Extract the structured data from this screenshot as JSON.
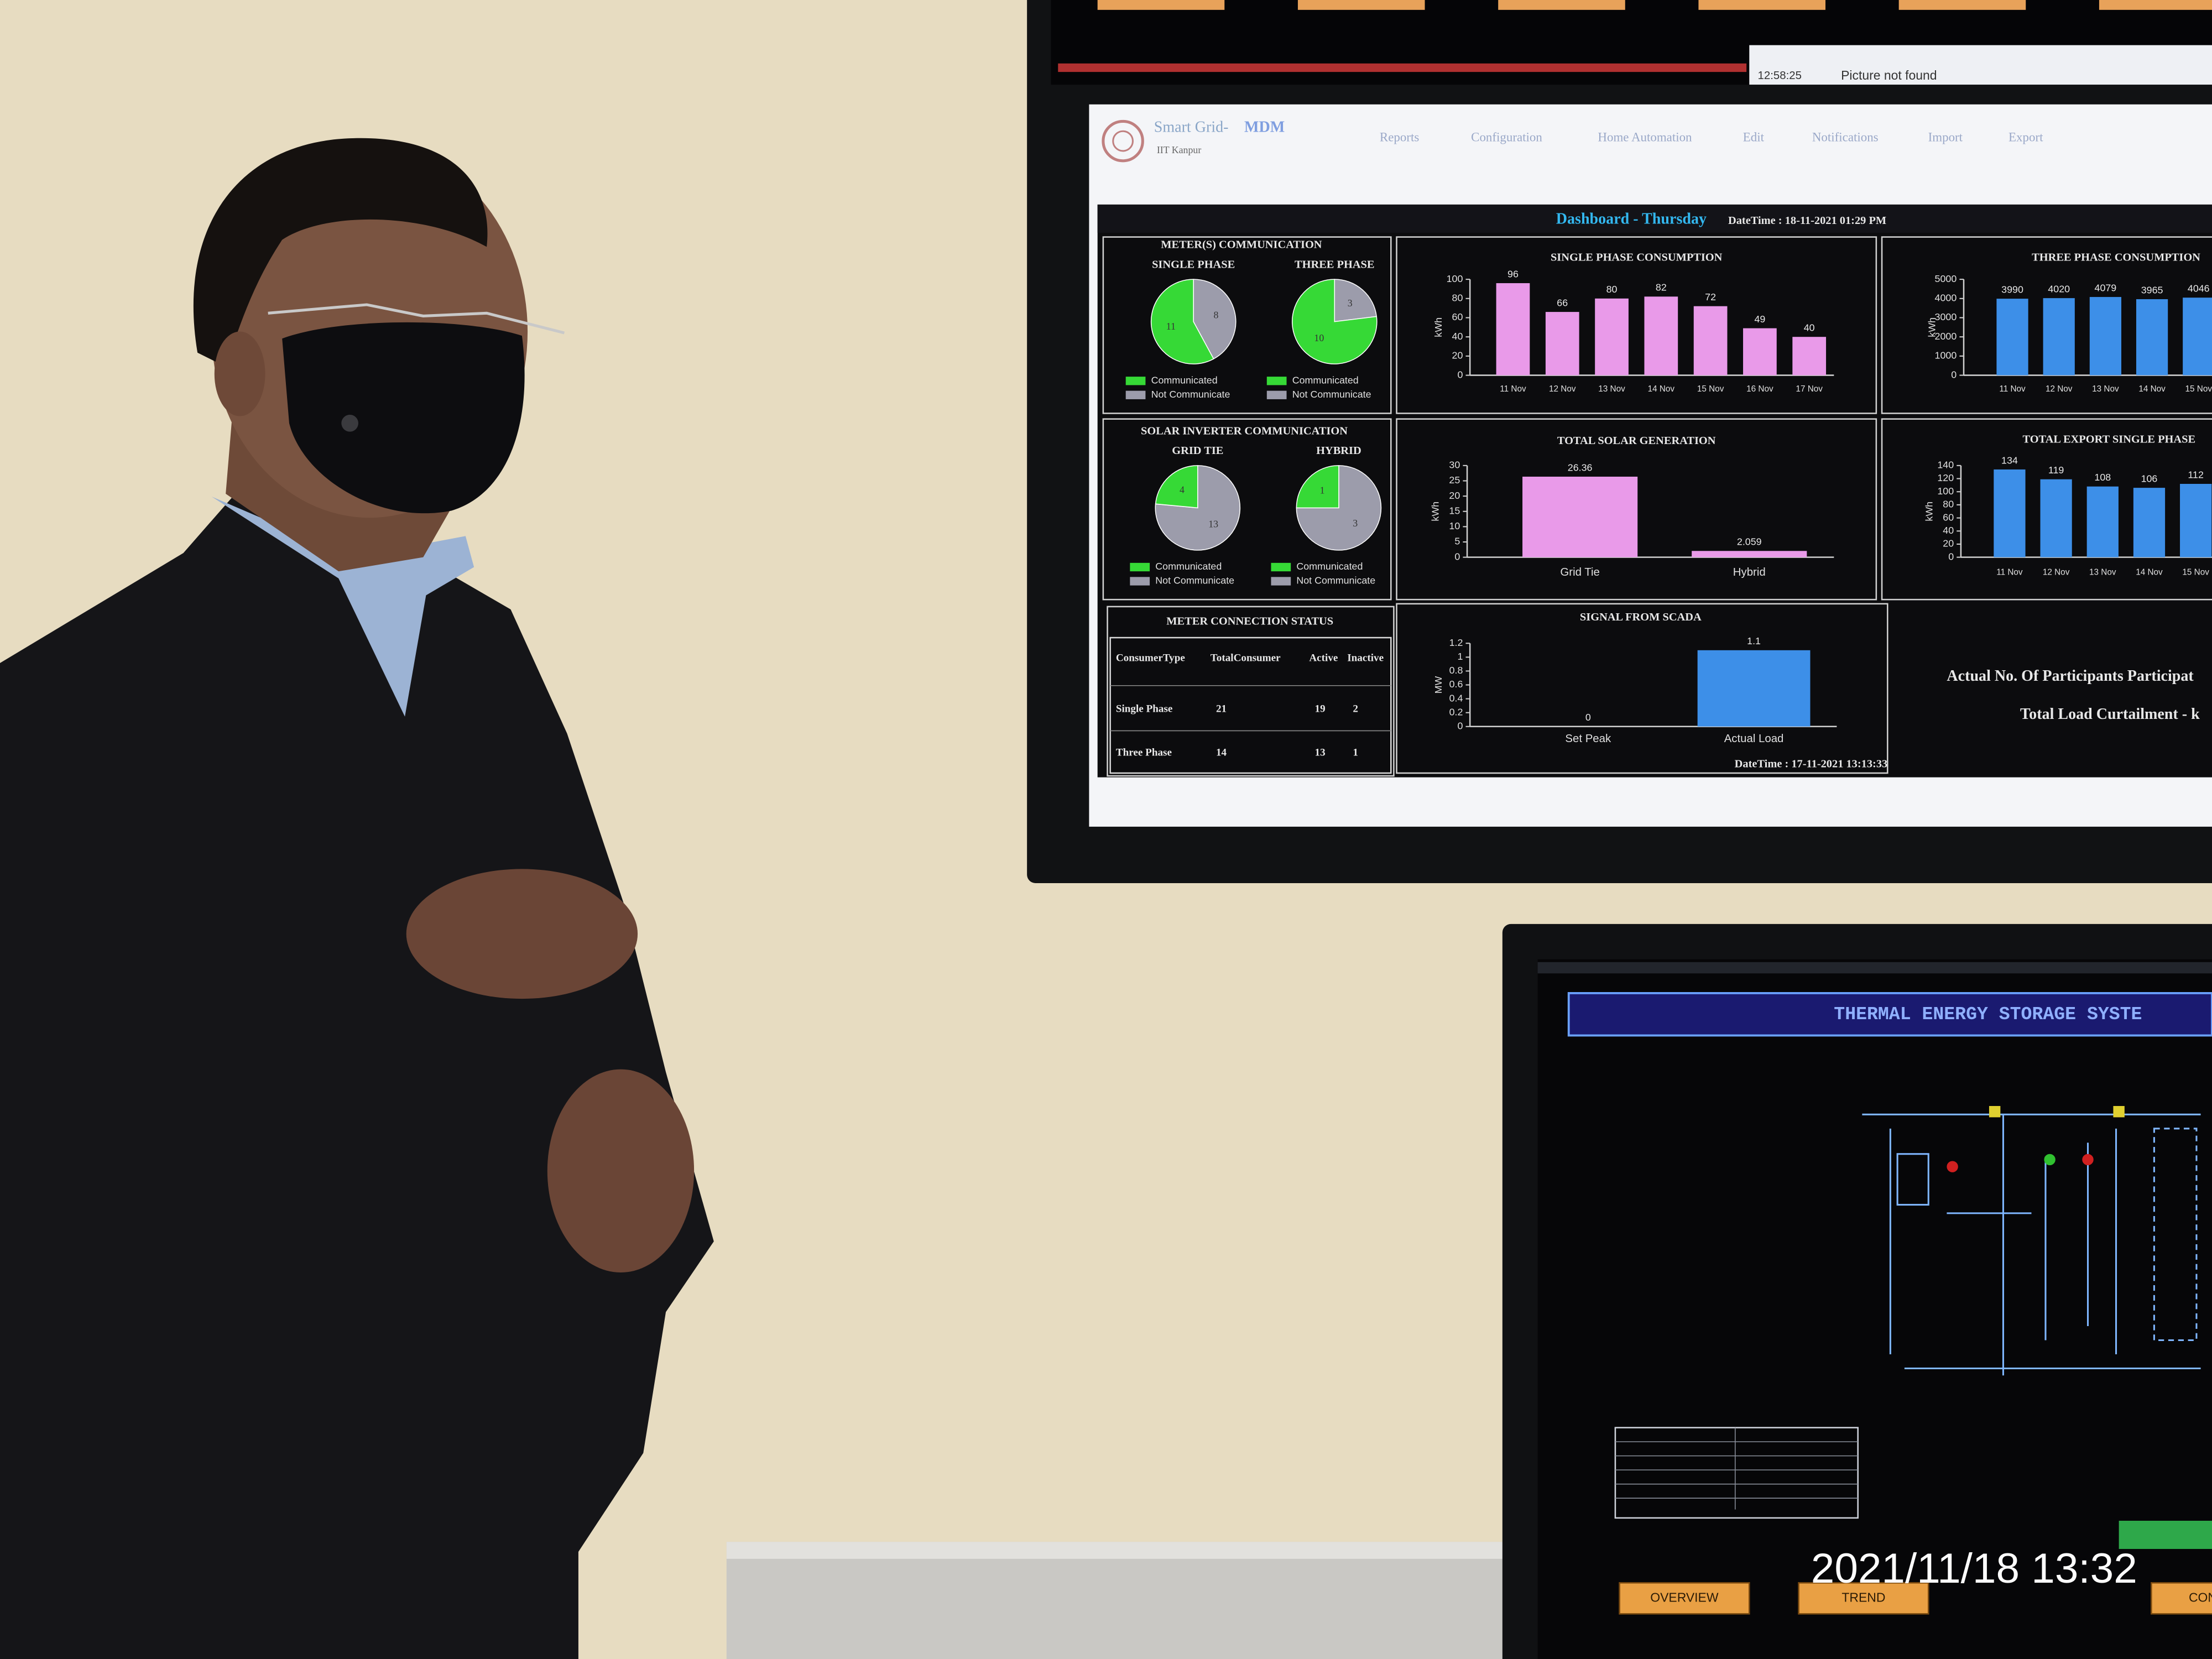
{
  "photo_timestamp": "2021/11/18 13:32",
  "top_strip": {
    "message_time": "12:58:25",
    "message": "Picture not found"
  },
  "dashboard": {
    "app_title": "Smart Grid-",
    "app_title_accent": "MDM",
    "institute": "IIT Kanpur",
    "nav": [
      "Reports",
      "Configuration",
      "Home Automation",
      "Edit",
      "Notifications",
      "Import",
      "Export"
    ],
    "heading": "Dashboard - Thursday",
    "datetime": "DateTime : 18-11-2021 01:29 PM",
    "meter_communication": {
      "title": "METER(S) COMMUNICATION",
      "pies": [
        {
          "label": "SINGLE PHASE",
          "values": [
            11,
            8
          ]
        },
        {
          "label": "THREE PHASE",
          "values": [
            10,
            3
          ]
        }
      ],
      "legend": [
        "Communicated",
        "Not Communicate"
      ],
      "colors": [
        "#36d936",
        "#9c9cab"
      ]
    },
    "solar_communication": {
      "title": "SOLAR INVERTER COMMUNICATION",
      "pies": [
        {
          "label": "GRID TIE",
          "values": [
            4,
            13
          ]
        },
        {
          "label": "HYBRID",
          "values": [
            1,
            3
          ]
        }
      ],
      "legend": [
        "Communicated",
        "Not Communicate"
      ],
      "colors": [
        "#36d936",
        "#9c9cab"
      ]
    },
    "charts": [
      {
        "type": "bar",
        "title": "SINGLE PHASE CONSUMPTION",
        "unit": "kWh",
        "categories": [
          "11 Nov",
          "12 Nov",
          "13 Nov",
          "14 Nov",
          "15 Nov",
          "16 Nov",
          "17 Nov"
        ],
        "values": [
          96,
          66,
          80,
          82,
          72,
          49,
          40
        ],
        "color": "#e99ae9",
        "ylim": [
          0,
          100
        ],
        "yticks": [
          0,
          20,
          40,
          60,
          80,
          100
        ]
      },
      {
        "type": "bar",
        "title": "THREE PHASE CONSUMPTION",
        "unit": "kWh",
        "categories": [
          "11 Nov",
          "12 Nov",
          "13 Nov",
          "14 Nov",
          "15 Nov"
        ],
        "values": [
          3990,
          4020,
          4079,
          3965,
          4046
        ],
        "color": "#3d8fe8",
        "ylim": [
          0,
          5000
        ],
        "yticks": [
          0,
          1000,
          2000,
          3000,
          4000,
          5000
        ]
      },
      {
        "type": "bar",
        "title": "TOTAL SOLAR GENERATION",
        "unit": "kWh",
        "categories": [
          "Grid Tie",
          "Hybrid"
        ],
        "values": [
          26.36,
          2.059
        ],
        "color": "#e99ae9",
        "ylim": [
          0,
          30
        ],
        "yticks": [
          0,
          5,
          10,
          15,
          20,
          25,
          30
        ]
      },
      {
        "type": "bar",
        "title": "TOTAL EXPORT SINGLE PHASE",
        "unit": "kWh",
        "categories": [
          "11 Nov",
          "12 Nov",
          "13 Nov",
          "14 Nov",
          "15 Nov"
        ],
        "values": [
          134,
          119,
          108,
          106,
          112
        ],
        "color": "#3d8fe8",
        "ylim": [
          0,
          140
        ],
        "yticks": [
          0,
          20,
          40,
          60,
          80,
          100,
          120,
          140
        ]
      },
      {
        "type": "bar",
        "title": "SIGNAL FROM SCADA",
        "unit": "MW",
        "categories": [
          "Set Peak",
          "Actual Load"
        ],
        "values": [
          0,
          1.1
        ],
        "color": "#3d8fe8",
        "ylim": [
          0,
          1.2
        ],
        "yticks": [
          0,
          0.2,
          0.4,
          0.6,
          0.8,
          1,
          1.2
        ],
        "datetime": "DateTime : 17-11-2021 13:13:33"
      }
    ],
    "meter_status": {
      "title": "METER CONNECTION STATUS",
      "header": [
        "ConsumerType",
        "TotalConsumer",
        "Active",
        "Inactive"
      ],
      "rows": [
        [
          "Single Phase",
          21,
          19,
          2
        ],
        [
          "Three Phase",
          14,
          13,
          1
        ]
      ]
    },
    "participants": "Actual No. Of Participants Participat",
    "curtailment": "Total Load Curtailment - k"
  },
  "tes": {
    "title": "THERMAL ENERGY STORAGE SYSTE",
    "buttons": [
      "OVERVIEW",
      "TREND",
      "CONTRO"
    ]
  }
}
